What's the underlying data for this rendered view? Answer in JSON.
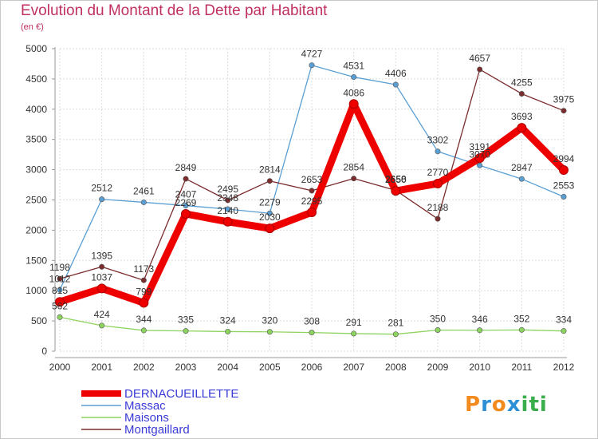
{
  "header": {
    "title": "Evolution du Montant de la Dette par Habitant",
    "subtitle": "(en €)"
  },
  "logo": {
    "letters": [
      "P",
      "r",
      "o",
      "x",
      "i",
      "t",
      "i"
    ],
    "colors": [
      "#f28a1e",
      "#2d8fd6",
      "#f28a1e",
      "#2d8fd6",
      "#3aae4a",
      "#3aae4a",
      "#3aae4a"
    ]
  },
  "chart_data": {
    "type": "line",
    "title": "Evolution du Montant de la Dette par Habitant",
    "subtitle": "(en €)",
    "xlabel": "",
    "ylabel": "",
    "x": [
      "2000",
      "2001",
      "2002",
      "2003",
      "2004",
      "2005",
      "2006",
      "2007",
      "2008",
      "2009",
      "2010",
      "2011",
      "2012"
    ],
    "ylim": [
      0,
      5000
    ],
    "yticks": [
      0,
      500,
      1000,
      1500,
      2000,
      2500,
      3000,
      3500,
      4000,
      4500,
      5000
    ],
    "grid": true,
    "legend": "bottom-left",
    "series": [
      {
        "name": "Massac",
        "color": "#5a9fd4",
        "values": [
          1012,
          2512,
          2461,
          2407,
          2348,
          2279,
          4727,
          4531,
          4406,
          3302,
          3070,
          2847,
          2553
        ]
      },
      {
        "name": "Maisons",
        "color": "#8dd35f",
        "values": [
          562,
          424,
          344,
          335,
          324,
          320,
          308,
          291,
          281,
          350,
          346,
          352,
          334
        ]
      },
      {
        "name": "Montgaillard",
        "color": "#7b2c2c",
        "values": [
          1198,
          1395,
          1173,
          2849,
          2495,
          2814,
          2653,
          2854,
          2658,
          2188,
          4657,
          4255,
          3975
        ]
      },
      {
        "name": "DERNACUEILLETTE",
        "color": "#ee0000",
        "values": [
          815,
          1037,
          799,
          2269,
          2140,
          2030,
          2295,
          4086,
          2650,
          2770,
          3191,
          3693,
          2994
        ]
      }
    ]
  }
}
